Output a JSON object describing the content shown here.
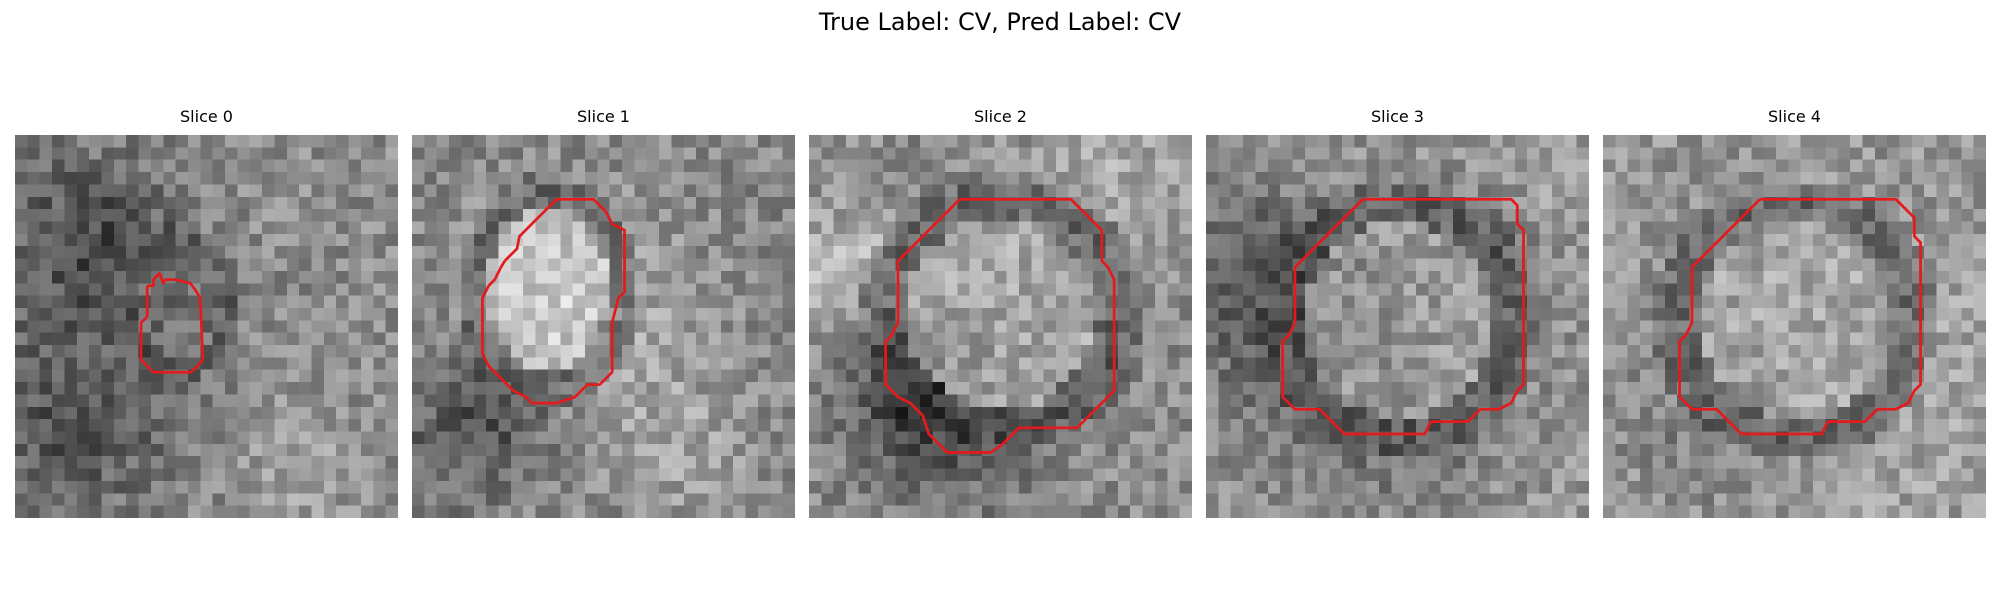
{
  "figure": {
    "title": "True Label: CV, Pred Label: CV",
    "contour_color": "#e41a1c"
  },
  "slices": [
    {
      "title": "Slice 0"
    },
    {
      "title": "Slice 1"
    },
    {
      "title": "Slice 2"
    },
    {
      "title": "Slice 3"
    },
    {
      "title": "Slice 4"
    }
  ]
}
